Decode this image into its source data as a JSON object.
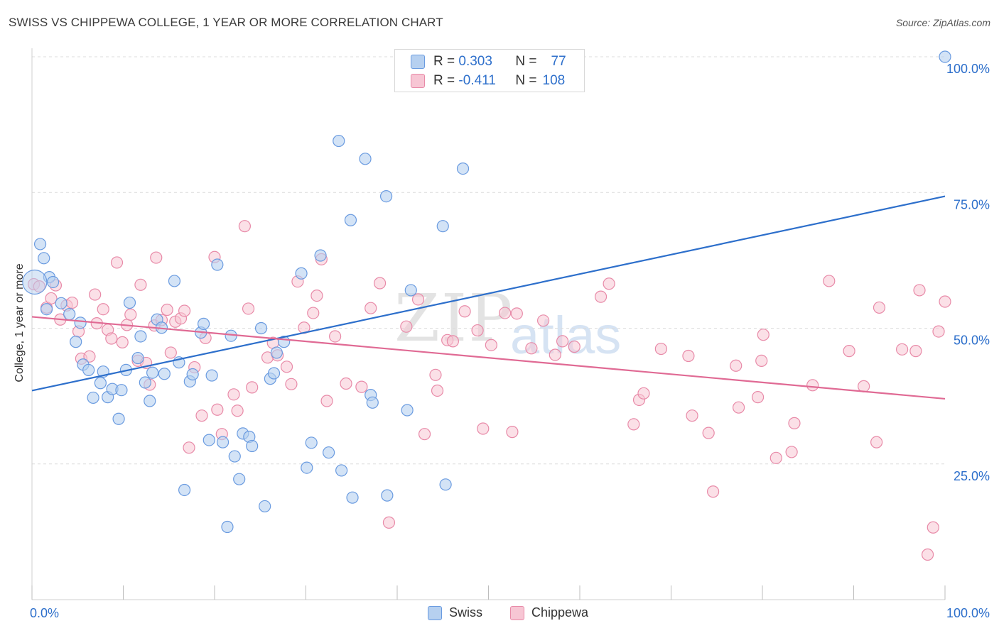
{
  "title": "SWISS VS CHIPPEWA COLLEGE, 1 YEAR OR MORE CORRELATION CHART",
  "source": "Source: ZipAtlas.com",
  "watermark": {
    "zip": "ZIP",
    "atlas": "atlas"
  },
  "legend_top": {
    "rows": [
      {
        "r_label": "R =",
        "r_value": "0.303",
        "n_label": "N =",
        "n_value": "77"
      },
      {
        "r_label": "R =",
        "r_value": "-0.411",
        "n_label": "N =",
        "n_value": "108"
      }
    ]
  },
  "legend_bottom": {
    "swiss": "Swiss",
    "chippewa": "Chippewa"
  },
  "colors": {
    "swiss_fill": "#b6d0f0",
    "swiss_stroke": "#6a9be0",
    "swiss_line": "#2d6fcb",
    "chippewa_fill": "#f7c6d4",
    "chippewa_stroke": "#e88aa8",
    "chippewa_line": "#e06a94",
    "axis_text": "#2d6fcb",
    "grid": "#dcdcdc"
  },
  "chart_data": {
    "type": "scatter",
    "title": "SWISS VS CHIPPEWA COLLEGE, 1 YEAR OR MORE CORRELATION CHART",
    "xlabel": "",
    "ylabel": "College, 1 year or more",
    "xlim": [
      0,
      100
    ],
    "ylim": [
      0,
      100
    ],
    "x_tick_labels": [
      "0.0%",
      "100.0%"
    ],
    "y_tick_labels": [
      "25.0%",
      "50.0%",
      "75.0%",
      "100.0%"
    ],
    "y_ticks": [
      25,
      50,
      75,
      100
    ],
    "grid": "horizontal dashed",
    "legend": "bottom-center",
    "series": [
      {
        "name": "Swiss",
        "r": 0.303,
        "n": 77,
        "trend": [
          [
            0,
            38.5
          ],
          [
            100,
            74.3
          ]
        ],
        "points": [
          [
            1.6,
            53.5
          ],
          [
            0.9,
            65.5
          ],
          [
            1.3,
            62.9
          ],
          [
            1.9,
            59.4
          ],
          [
            2.3,
            58.5
          ],
          [
            3.2,
            54.6
          ],
          [
            4.1,
            52.6
          ],
          [
            4.8,
            47.5
          ],
          [
            5.3,
            51
          ],
          [
            5.6,
            43.3
          ],
          [
            6.2,
            42.3
          ],
          [
            6.7,
            37.2
          ],
          [
            7.5,
            39.9
          ],
          [
            7.8,
            42
          ],
          [
            8.3,
            37.3
          ],
          [
            8.8,
            38.8
          ],
          [
            9.5,
            33.3
          ],
          [
            9.8,
            38.6
          ],
          [
            10.3,
            42.3
          ],
          [
            10.7,
            54.7
          ],
          [
            11.6,
            44.5
          ],
          [
            11.9,
            48.5
          ],
          [
            12.4,
            40
          ],
          [
            12.9,
            36.6
          ],
          [
            13.2,
            41.8
          ],
          [
            13.7,
            51.6
          ],
          [
            14.2,
            50.1
          ],
          [
            14.5,
            41.6
          ],
          [
            15.6,
            58.7
          ],
          [
            16.1,
            43.7
          ],
          [
            16.7,
            20.2
          ],
          [
            17.3,
            40.2
          ],
          [
            17.6,
            41.5
          ],
          [
            18.5,
            49.2
          ],
          [
            18.8,
            50.8
          ],
          [
            19.4,
            29.4
          ],
          [
            19.7,
            41.3
          ],
          [
            20.3,
            61.7
          ],
          [
            20.9,
            29
          ],
          [
            21.4,
            13.4
          ],
          [
            21.8,
            48.6
          ],
          [
            22.2,
            26.4
          ],
          [
            22.7,
            22.2
          ],
          [
            23.1,
            30.6
          ],
          [
            23.8,
            30
          ],
          [
            24.1,
            28.3
          ],
          [
            25.1,
            50
          ],
          [
            25.5,
            17.2
          ],
          [
            26.1,
            40.7
          ],
          [
            26.5,
            41.7
          ],
          [
            26.8,
            45.5
          ],
          [
            27.6,
            47.5
          ],
          [
            29.5,
            60.1
          ],
          [
            30.1,
            24.3
          ],
          [
            30.6,
            28.9
          ],
          [
            31.6,
            63.4
          ],
          [
            32.5,
            27.1
          ],
          [
            33.6,
            84.5
          ],
          [
            33.9,
            23.8
          ],
          [
            34.9,
            69.9
          ],
          [
            35.1,
            18.8
          ],
          [
            36.5,
            81.2
          ],
          [
            37.1,
            37.7
          ],
          [
            37.3,
            36.3
          ],
          [
            38.8,
            74.3
          ],
          [
            38.9,
            19.2
          ],
          [
            41.1,
            34.9
          ],
          [
            41.5,
            57
          ],
          [
            45,
            68.8
          ],
          [
            45.3,
            21.2
          ],
          [
            47.2,
            79.4
          ],
          [
            100,
            100
          ]
        ],
        "radius": 8
      },
      {
        "name": "Chippewa",
        "r": -0.411,
        "n": 108,
        "trend": [
          [
            0,
            52.1
          ],
          [
            100,
            37
          ]
        ],
        "points": [
          [
            0.2,
            58.1
          ],
          [
            0.8,
            57.7
          ],
          [
            1.6,
            53.8
          ],
          [
            2.1,
            55.5
          ],
          [
            2.6,
            57.9
          ],
          [
            3.1,
            51.6
          ],
          [
            3.8,
            54.2
          ],
          [
            4.4,
            54.7
          ],
          [
            5.1,
            49.4
          ],
          [
            5.4,
            44.4
          ],
          [
            6.3,
            44.8
          ],
          [
            6.9,
            56.2
          ],
          [
            7.1,
            50.9
          ],
          [
            7.8,
            53.5
          ],
          [
            8.3,
            49.7
          ],
          [
            8.7,
            48.1
          ],
          [
            9.3,
            62.1
          ],
          [
            9.9,
            47.4
          ],
          [
            10.4,
            50.6
          ],
          [
            10.8,
            52.5
          ],
          [
            11.6,
            44
          ],
          [
            11.9,
            58
          ],
          [
            12.5,
            43.6
          ],
          [
            12.9,
            39.6
          ],
          [
            13.4,
            50.5
          ],
          [
            13.6,
            63
          ],
          [
            14.2,
            51.5
          ],
          [
            14.8,
            53.4
          ],
          [
            15.2,
            45.5
          ],
          [
            15.7,
            51.2
          ],
          [
            16.3,
            51.8
          ],
          [
            16.7,
            53.2
          ],
          [
            17.2,
            28
          ],
          [
            17.8,
            42.8
          ],
          [
            18.6,
            33.9
          ],
          [
            19,
            48.2
          ],
          [
            20,
            63.1
          ],
          [
            20.3,
            35
          ],
          [
            20.8,
            30.5
          ],
          [
            22.1,
            37.8
          ],
          [
            22.5,
            34.8
          ],
          [
            23.3,
            68.8
          ],
          [
            23.7,
            53.6
          ],
          [
            24.1,
            39.1
          ],
          [
            25.8,
            44.6
          ],
          [
            26.4,
            47.3
          ],
          [
            26.9,
            45
          ],
          [
            27.9,
            42.9
          ],
          [
            28.4,
            39.7
          ],
          [
            29.1,
            58.6
          ],
          [
            29.8,
            50.1
          ],
          [
            30.8,
            52.8
          ],
          [
            31.2,
            56
          ],
          [
            31.7,
            62.7
          ],
          [
            32.3,
            36.6
          ],
          [
            33.2,
            48.5
          ],
          [
            34.4,
            39.8
          ],
          [
            36.1,
            39.2
          ],
          [
            37.1,
            53.7
          ],
          [
            38.1,
            58.3
          ],
          [
            39.1,
            14.2
          ],
          [
            41,
            50.3
          ],
          [
            42.3,
            55.3
          ],
          [
            43,
            30.5
          ],
          [
            44.2,
            41.4
          ],
          [
            44.4,
            38.5
          ],
          [
            45.5,
            47.8
          ],
          [
            46.1,
            47.6
          ],
          [
            47.4,
            53.1
          ],
          [
            48.8,
            49.6
          ],
          [
            49.4,
            31.5
          ],
          [
            50.3,
            46.9
          ],
          [
            51.8,
            52.8
          ],
          [
            52.6,
            30.9
          ],
          [
            53.1,
            52.7
          ],
          [
            54.7,
            46.3
          ],
          [
            56,
            51.4
          ],
          [
            57.3,
            45.1
          ],
          [
            58.1,
            47.6
          ],
          [
            59.4,
            46.6
          ],
          [
            62.3,
            55.8
          ],
          [
            63.2,
            58.2
          ],
          [
            65.9,
            32.3
          ],
          [
            66.5,
            36.8
          ],
          [
            67,
            38
          ],
          [
            68.9,
            46.2
          ],
          [
            71.9,
            44.9
          ],
          [
            72.3,
            33.9
          ],
          [
            74.1,
            30.7
          ],
          [
            74.6,
            19.9
          ],
          [
            77.1,
            43.1
          ],
          [
            77.4,
            35.4
          ],
          [
            79.5,
            37.3
          ],
          [
            79.9,
            44
          ],
          [
            80.1,
            48.8
          ],
          [
            81.5,
            26.1
          ],
          [
            83.2,
            27.2
          ],
          [
            83.5,
            32.5
          ],
          [
            85.5,
            39.5
          ],
          [
            87.3,
            58.7
          ],
          [
            89.5,
            45.8
          ],
          [
            91.1,
            39.3
          ],
          [
            92.5,
            29
          ],
          [
            92.8,
            53.8
          ],
          [
            95.3,
            46.1
          ],
          [
            96.8,
            45.8
          ],
          [
            97.2,
            57
          ],
          [
            98.1,
            8.3
          ],
          [
            98.7,
            13.3
          ],
          [
            99.3,
            49.4
          ],
          [
            100,
            54.9
          ]
        ],
        "radius": 8
      }
    ],
    "large_points": [
      {
        "series": "Swiss",
        "x": 0.3,
        "y": 58.5,
        "radius": 17
      }
    ]
  }
}
